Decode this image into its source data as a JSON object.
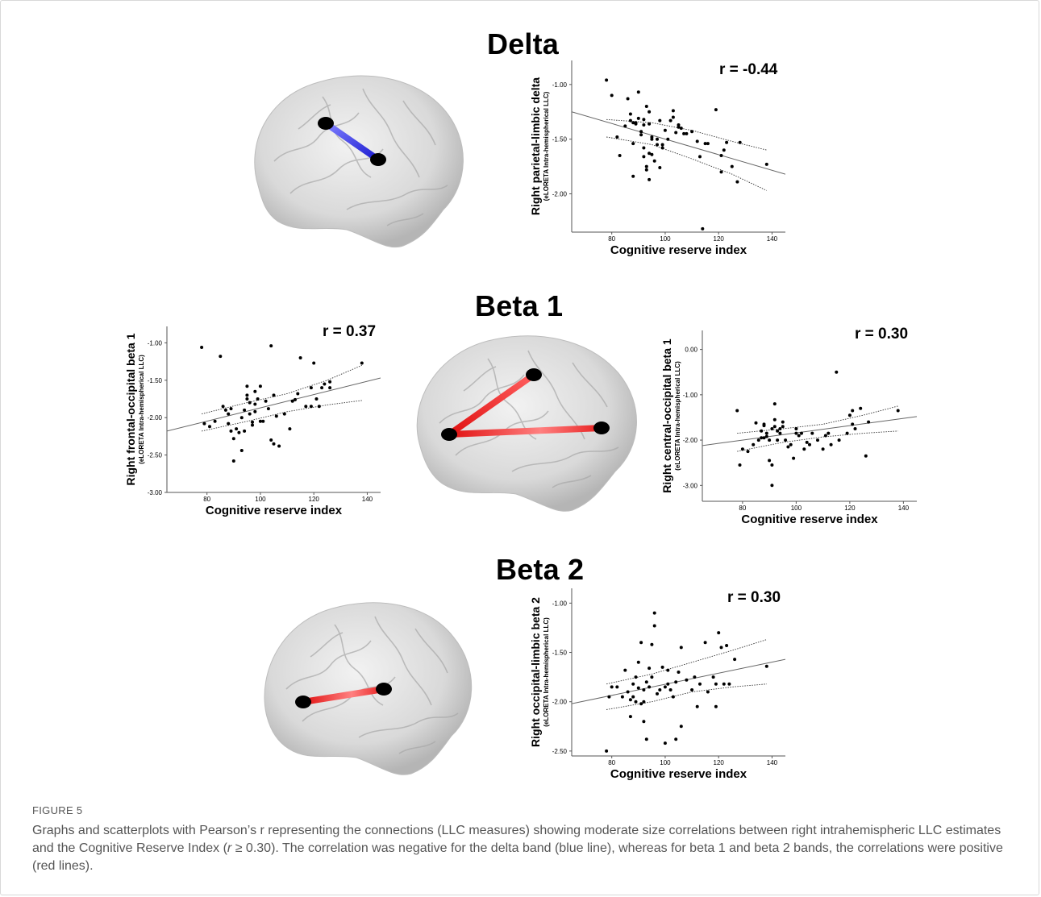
{
  "figure": {
    "label": "FIGURE 5",
    "caption_before": "Graphs and scatterplots with Pearson’s r representing the connections (LLC measures) showing moderate size correlations between right intrahemispheric LLC estimates and the Cognitive Reserve Index (",
    "caption_italic": "r",
    "caption_after": " ≥ 0.30). The correlation was negative for the delta band (blue line), whereas for beta 1 and beta 2 bands, the correlations were positive (red lines)."
  },
  "panels": {
    "delta": {
      "title": "Delta",
      "connection_color": "#2b2bdc"
    },
    "beta1": {
      "title": "Beta 1",
      "connection_color": "#e02020"
    },
    "beta2": {
      "title": "Beta 2",
      "connection_color": "#e02020"
    }
  },
  "chart_data": [
    {
      "id": "delta",
      "type": "scatter",
      "r_label": "r = -0.44",
      "xlabel": "Cognitive reserve index",
      "ylabel": "Right parietal-limbic delta",
      "ylabel_sub": "(eLORETA Intra-hemispherical LLC)",
      "xlim": [
        65,
        145
      ],
      "ylim": [
        -2.35,
        -0.78
      ],
      "xticks": [
        80,
        100,
        120,
        140
      ],
      "xtick_labels": [
        "80",
        "100",
        "120",
        "140"
      ],
      "yticks": [
        -1.0,
        -1.5,
        -2.0
      ],
      "ytick_labels": [
        "-1.00",
        "-1.50",
        "-2.00"
      ],
      "fit": [
        [
          65,
          -1.25
        ],
        [
          145,
          -1.82
        ]
      ],
      "ci_upper": [
        [
          78,
          -1.32
        ],
        [
          95,
          -1.35
        ],
        [
          110,
          -1.42
        ],
        [
          125,
          -1.52
        ],
        [
          138,
          -1.6
        ]
      ],
      "ci_lower": [
        [
          78,
          -1.48
        ],
        [
          95,
          -1.55
        ],
        [
          110,
          -1.68
        ],
        [
          125,
          -1.82
        ],
        [
          138,
          -1.97
        ]
      ],
      "points": [
        [
          78,
          -0.96
        ],
        [
          80,
          -1.1
        ],
        [
          82,
          -1.48
        ],
        [
          83,
          -1.65
        ],
        [
          85,
          -1.38
        ],
        [
          86,
          -1.13
        ],
        [
          87,
          -1.27
        ],
        [
          87,
          -1.33
        ],
        [
          88,
          -1.54
        ],
        [
          88,
          -1.84
        ],
        [
          88,
          -1.35
        ],
        [
          89,
          -1.36
        ],
        [
          89,
          -1.35
        ],
        [
          90,
          -1.31
        ],
        [
          90,
          -1.07
        ],
        [
          91,
          -1.46
        ],
        [
          91,
          -1.43
        ],
        [
          92,
          -1.37
        ],
        [
          92,
          -1.32
        ],
        [
          92,
          -1.58
        ],
        [
          92,
          -1.66
        ],
        [
          93,
          -1.2
        ],
        [
          93,
          -1.75
        ],
        [
          93,
          -1.78
        ],
        [
          94,
          -1.63
        ],
        [
          94,
          -1.87
        ],
        [
          94,
          -1.36
        ],
        [
          94,
          -1.25
        ],
        [
          95,
          -1.48
        ],
        [
          95,
          -1.5
        ],
        [
          95,
          -1.64
        ],
        [
          96,
          -1.7
        ],
        [
          97,
          -1.5
        ],
        [
          97,
          -1.55
        ],
        [
          98,
          -1.33
        ],
        [
          98,
          -1.76
        ],
        [
          99,
          -1.55
        ],
        [
          99,
          -1.58
        ],
        [
          100,
          -1.42
        ],
        [
          101,
          -1.5
        ],
        [
          102,
          -1.33
        ],
        [
          103,
          -1.24
        ],
        [
          103,
          -1.3
        ],
        [
          104,
          -1.44
        ],
        [
          105,
          -1.37
        ],
        [
          105,
          -1.39
        ],
        [
          106,
          -1.4
        ],
        [
          107,
          -1.45
        ],
        [
          108,
          -1.45
        ],
        [
          110,
          -1.43
        ],
        [
          112,
          -1.52
        ],
        [
          113,
          -1.66
        ],
        [
          114,
          -2.32
        ],
        [
          115,
          -1.54
        ],
        [
          116,
          -1.54
        ],
        [
          119,
          -1.23
        ],
        [
          121,
          -1.65
        ],
        [
          121,
          -1.8
        ],
        [
          122,
          -1.6
        ],
        [
          123,
          -1.53
        ],
        [
          125,
          -1.75
        ],
        [
          127,
          -1.89
        ],
        [
          128,
          -1.53
        ],
        [
          138,
          -1.73
        ]
      ]
    },
    {
      "id": "beta1_left",
      "type": "scatter",
      "r_label": "r = 0.37",
      "xlabel": "Cognitive reserve index",
      "ylabel": "Right frontal-occipital beta 1",
      "ylabel_sub": "(eLORETA Intra-hemispherical LLC)",
      "xlim": [
        65,
        145
      ],
      "ylim": [
        -3.0,
        -0.78
      ],
      "xticks": [
        80,
        100,
        120,
        140
      ],
      "xtick_labels": [
        "80",
        "100",
        "120",
        "140"
      ],
      "yticks": [
        -1.0,
        -1.5,
        -2.0,
        -2.5,
        -3.0
      ],
      "ytick_labels": [
        "-1.00",
        "-1.50",
        "-2.00",
        "-2.50",
        "-3.00"
      ],
      "fit": [
        [
          65,
          -2.18
        ],
        [
          145,
          -1.47
        ]
      ],
      "ci_upper": [
        [
          78,
          -1.95
        ],
        [
          95,
          -1.8
        ],
        [
          110,
          -1.68
        ],
        [
          125,
          -1.5
        ],
        [
          138,
          -1.3
        ]
      ],
      "ci_lower": [
        [
          78,
          -2.18
        ],
        [
          95,
          -2.05
        ],
        [
          110,
          -1.92
        ],
        [
          125,
          -1.83
        ],
        [
          138,
          -1.77
        ]
      ],
      "points": [
        [
          78,
          -1.06
        ],
        [
          79,
          -2.08
        ],
        [
          81,
          -2.12
        ],
        [
          83,
          -2.05
        ],
        [
          85,
          -1.18
        ],
        [
          86,
          -1.85
        ],
        [
          87,
          -1.9
        ],
        [
          88,
          -2.08
        ],
        [
          88,
          -1.95
        ],
        [
          89,
          -1.88
        ],
        [
          89,
          -2.18
        ],
        [
          90,
          -2.28
        ],
        [
          90,
          -2.58
        ],
        [
          91,
          -2.15
        ],
        [
          92,
          -2.2
        ],
        [
          93,
          -2.44
        ],
        [
          93,
          -2.0
        ],
        [
          94,
          -2.18
        ],
        [
          94,
          -1.9
        ],
        [
          95,
          -1.7
        ],
        [
          95,
          -1.75
        ],
        [
          95,
          -1.58
        ],
        [
          96,
          -1.95
        ],
        [
          96,
          -1.8
        ],
        [
          97,
          -2.1
        ],
        [
          97,
          -2.06
        ],
        [
          98,
          -1.82
        ],
        [
          98,
          -1.65
        ],
        [
          98,
          -1.92
        ],
        [
          99,
          -1.75
        ],
        [
          100,
          -2.05
        ],
        [
          100,
          -1.58
        ],
        [
          101,
          -2.05
        ],
        [
          102,
          -1.78
        ],
        [
          103,
          -1.88
        ],
        [
          104,
          -2.3
        ],
        [
          104,
          -1.04
        ],
        [
          105,
          -1.7
        ],
        [
          105,
          -2.35
        ],
        [
          106,
          -1.98
        ],
        [
          107,
          -2.38
        ],
        [
          109,
          -1.95
        ],
        [
          111,
          -2.15
        ],
        [
          112,
          -1.78
        ],
        [
          113,
          -1.76
        ],
        [
          114,
          -1.68
        ],
        [
          115,
          -1.2
        ],
        [
          117,
          -1.85
        ],
        [
          119,
          -1.6
        ],
        [
          119,
          -1.85
        ],
        [
          120,
          -1.27
        ],
        [
          121,
          -1.75
        ],
        [
          122,
          -1.85
        ],
        [
          123,
          -1.6
        ],
        [
          124,
          -1.55
        ],
        [
          126,
          -1.6
        ],
        [
          126,
          -1.52
        ],
        [
          138,
          -1.27
        ]
      ]
    },
    {
      "id": "beta1_right",
      "type": "scatter",
      "r_label": "r = 0.30",
      "xlabel": "Cognitive reserve index",
      "ylabel": "Right central-occipital beta 1",
      "ylabel_sub": "(eLORETA Intra-hemispherical LLC)",
      "xlim": [
        65,
        145
      ],
      "ylim": [
        -3.35,
        0.42
      ],
      "xticks": [
        80,
        100,
        120,
        140
      ],
      "xtick_labels": [
        "80",
        "100",
        "120",
        "140"
      ],
      "yticks": [
        0.0,
        -1.0,
        -2.0,
        -3.0
      ],
      "ytick_labels": [
        "0.00",
        "-1.00",
        "-2.00",
        "-3.00"
      ],
      "fit": [
        [
          65,
          -2.12
        ],
        [
          145,
          -1.48
        ]
      ],
      "ci_upper": [
        [
          78,
          -1.85
        ],
        [
          95,
          -1.75
        ],
        [
          110,
          -1.65
        ],
        [
          125,
          -1.45
        ],
        [
          138,
          -1.25
        ]
      ],
      "ci_lower": [
        [
          78,
          -2.25
        ],
        [
          95,
          -2.05
        ],
        [
          110,
          -1.93
        ],
        [
          125,
          -1.85
        ],
        [
          138,
          -1.8
        ]
      ],
      "points": [
        [
          78,
          -1.35
        ],
        [
          79,
          -2.55
        ],
        [
          80,
          -2.2
        ],
        [
          82,
          -2.25
        ],
        [
          84,
          -2.1
        ],
        [
          85,
          -1.62
        ],
        [
          86,
          -2.0
        ],
        [
          87,
          -1.95
        ],
        [
          87,
          -1.8
        ],
        [
          88,
          -1.95
        ],
        [
          88,
          -1.68
        ],
        [
          88,
          -1.65
        ],
        [
          89,
          -1.92
        ],
        [
          89,
          -1.85
        ],
        [
          90,
          -2.45
        ],
        [
          90,
          -2.0
        ],
        [
          91,
          -1.75
        ],
        [
          91,
          -2.55
        ],
        [
          91,
          -3.0
        ],
        [
          92,
          -1.7
        ],
        [
          92,
          -1.2
        ],
        [
          92,
          -1.55
        ],
        [
          93,
          -1.8
        ],
        [
          93,
          -2.0
        ],
        [
          94,
          -1.85
        ],
        [
          94,
          -1.75
        ],
        [
          95,
          -1.6
        ],
        [
          95,
          -1.7
        ],
        [
          96,
          -2.0
        ],
        [
          97,
          -2.15
        ],
        [
          98,
          -2.1
        ],
        [
          99,
          -2.4
        ],
        [
          100,
          -1.85
        ],
        [
          100,
          -1.75
        ],
        [
          101,
          -1.9
        ],
        [
          102,
          -1.85
        ],
        [
          103,
          -2.2
        ],
        [
          104,
          -2.05
        ],
        [
          105,
          -2.1
        ],
        [
          106,
          -1.85
        ],
        [
          108,
          -2.0
        ],
        [
          110,
          -2.2
        ],
        [
          111,
          -1.9
        ],
        [
          112,
          -1.85
        ],
        [
          113,
          -2.1
        ],
        [
          115,
          -0.5
        ],
        [
          116,
          -2.0
        ],
        [
          119,
          -1.85
        ],
        [
          120,
          -1.45
        ],
        [
          121,
          -1.65
        ],
        [
          121,
          -1.35
        ],
        [
          122,
          -1.75
        ],
        [
          124,
          -1.3
        ],
        [
          126,
          -2.35
        ],
        [
          127,
          -1.6
        ],
        [
          138,
          -1.35
        ]
      ]
    },
    {
      "id": "beta2",
      "type": "scatter",
      "r_label": "r = 0.30",
      "xlabel": "Cognitive reserve index",
      "ylabel": "Right occipital-limbic beta 2",
      "ylabel_sub": "(eLORETA Intra-hemispherical LLC)",
      "xlim": [
        65,
        145
      ],
      "ylim": [
        -2.55,
        -0.85
      ],
      "xticks": [
        80,
        100,
        120,
        140
      ],
      "xtick_labels": [
        "80",
        "100",
        "120",
        "140"
      ],
      "yticks": [
        -1.0,
        -1.5,
        -2.0,
        -2.5
      ],
      "ytick_labels": [
        "-1.00",
        "-1.50",
        "-2.00",
        "-2.50"
      ],
      "fit": [
        [
          65,
          -2.02
        ],
        [
          145,
          -1.57
        ]
      ],
      "ci_upper": [
        [
          78,
          -1.82
        ],
        [
          95,
          -1.72
        ],
        [
          110,
          -1.6
        ],
        [
          125,
          -1.48
        ],
        [
          138,
          -1.37
        ]
      ],
      "ci_lower": [
        [
          78,
          -2.08
        ],
        [
          95,
          -2.0
        ],
        [
          110,
          -1.9
        ],
        [
          125,
          -1.85
        ],
        [
          138,
          -1.82
        ]
      ],
      "points": [
        [
          78,
          -2.5
        ],
        [
          79,
          -1.95
        ],
        [
          80,
          -1.85
        ],
        [
          82,
          -1.85
        ],
        [
          84,
          -1.95
        ],
        [
          85,
          -1.68
        ],
        [
          86,
          -1.9
        ],
        [
          87,
          -2.15
        ],
        [
          87,
          -1.98
        ],
        [
          88,
          -1.82
        ],
        [
          88,
          -1.95
        ],
        [
          89,
          -2.0
        ],
        [
          89,
          -1.75
        ],
        [
          90,
          -1.6
        ],
        [
          90,
          -1.86
        ],
        [
          91,
          -2.02
        ],
        [
          91,
          -1.4
        ],
        [
          92,
          -1.88
        ],
        [
          92,
          -2.2
        ],
        [
          92,
          -2.0
        ],
        [
          93,
          -1.8
        ],
        [
          93,
          -2.38
        ],
        [
          94,
          -1.66
        ],
        [
          94,
          -1.85
        ],
        [
          95,
          -1.75
        ],
        [
          95,
          -1.42
        ],
        [
          96,
          -1.23
        ],
        [
          96,
          -1.1
        ],
        [
          97,
          -1.92
        ],
        [
          98,
          -1.88
        ],
        [
          99,
          -1.65
        ],
        [
          100,
          -1.85
        ],
        [
          100,
          -2.42
        ],
        [
          101,
          -1.68
        ],
        [
          101,
          -1.82
        ],
        [
          102,
          -1.88
        ],
        [
          103,
          -1.95
        ],
        [
          104,
          -2.38
        ],
        [
          104,
          -1.8
        ],
        [
          105,
          -1.7
        ],
        [
          106,
          -2.25
        ],
        [
          106,
          -1.45
        ],
        [
          108,
          -1.78
        ],
        [
          110,
          -1.88
        ],
        [
          111,
          -1.75
        ],
        [
          112,
          -2.05
        ],
        [
          113,
          -1.82
        ],
        [
          115,
          -1.4
        ],
        [
          116,
          -1.9
        ],
        [
          118,
          -1.75
        ],
        [
          119,
          -2.05
        ],
        [
          119,
          -1.82
        ],
        [
          120,
          -1.3
        ],
        [
          121,
          -1.45
        ],
        [
          122,
          -1.82
        ],
        [
          123,
          -1.43
        ],
        [
          124,
          -1.82
        ],
        [
          126,
          -1.57
        ],
        [
          138,
          -1.64
        ]
      ]
    }
  ]
}
